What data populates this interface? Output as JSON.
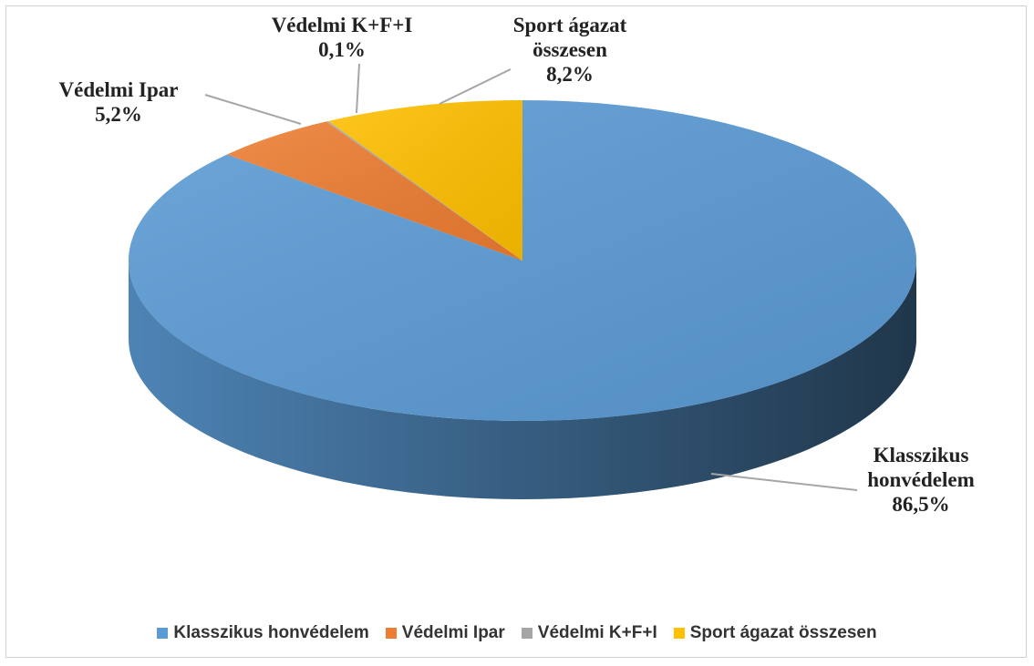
{
  "chart_data": {
    "type": "pie3d",
    "categories": [
      "Klasszikus honvédelem",
      "Védelmi Ipar",
      "Védelmi K+F+I",
      "Sport ágazat összesen"
    ],
    "values": [
      86.5,
      5.2,
      0.1,
      8.2
    ],
    "value_labels": [
      "86,5%",
      "5,2%",
      "0,1%",
      "8,2%"
    ],
    "colors": [
      "#5b9bd5",
      "#ed7d31",
      "#a5a5a5",
      "#ffc000"
    ],
    "legend": "bottom"
  }
}
